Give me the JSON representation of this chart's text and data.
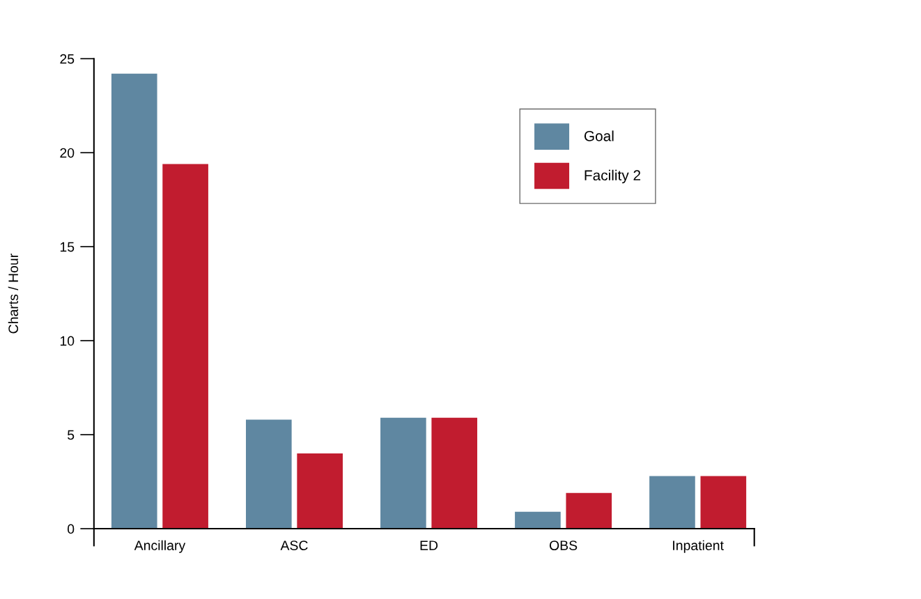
{
  "chart_data": {
    "type": "bar",
    "ylabel": "Charts / Hour",
    "categories": [
      "Ancillary",
      "ASC",
      "ED",
      "OBS",
      "Inpatient"
    ],
    "series": [
      {
        "name": "Goal",
        "color": "#5f87a1",
        "values": [
          24.2,
          5.8,
          5.9,
          0.9,
          2.8
        ]
      },
      {
        "name": "Facility 2",
        "color": "#c11c2f",
        "values": [
          19.4,
          4.0,
          5.9,
          1.9,
          2.8
        ]
      }
    ],
    "ylim": [
      0,
      25
    ],
    "yticks": [
      0,
      5,
      10,
      15,
      20,
      25
    ],
    "grid": false,
    "legend": "top right"
  }
}
